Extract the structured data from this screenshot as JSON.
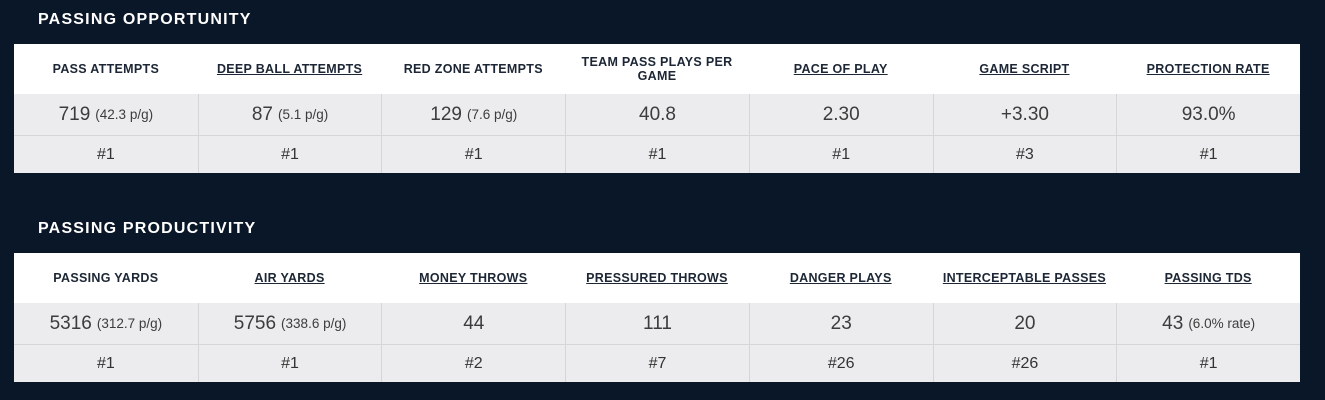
{
  "colors": {
    "background_navy": "#0a1728",
    "header_band": "#ffffff",
    "row_gray": "#ececee",
    "divider": "#d6d6da",
    "title_text": "#ffffff",
    "header_text": "#1c2634",
    "value_text": "#3c3c3c"
  },
  "sections": [
    {
      "title": "PASSING OPPORTUNITY",
      "columns": [
        {
          "label": "PASS ATTEMPTS",
          "underlined": false,
          "value": "719",
          "sub": "(42.3 p/g)",
          "rank": "#1"
        },
        {
          "label": "DEEP BALL ATTEMPTS",
          "underlined": true,
          "value": "87",
          "sub": "(5.1 p/g)",
          "rank": "#1"
        },
        {
          "label": "RED ZONE ATTEMPTS",
          "underlined": false,
          "value": "129",
          "sub": "(7.6 p/g)",
          "rank": "#1"
        },
        {
          "label": "TEAM PASS PLAYS PER GAME",
          "underlined": false,
          "value": "40.8",
          "sub": "",
          "rank": "#1"
        },
        {
          "label": "PACE OF PLAY",
          "underlined": true,
          "value": "2.30",
          "sub": "",
          "rank": "#1"
        },
        {
          "label": "GAME SCRIPT",
          "underlined": true,
          "value": "+3.30",
          "sub": "",
          "rank": "#3"
        },
        {
          "label": "PROTECTION RATE",
          "underlined": true,
          "value": "93.0%",
          "sub": "",
          "rank": "#1"
        }
      ]
    },
    {
      "title": "PASSING PRODUCTIVITY",
      "columns": [
        {
          "label": "PASSING YARDS",
          "underlined": false,
          "value": "5316",
          "sub": "(312.7 p/g)",
          "rank": "#1"
        },
        {
          "label": "AIR YARDS",
          "underlined": true,
          "value": "5756",
          "sub": "(338.6 p/g)",
          "rank": "#1"
        },
        {
          "label": "MONEY THROWS",
          "underlined": true,
          "value": "44",
          "sub": "",
          "rank": "#2"
        },
        {
          "label": "PRESSURED THROWS",
          "underlined": true,
          "value": "111",
          "sub": "",
          "rank": "#7"
        },
        {
          "label": "DANGER PLAYS",
          "underlined": true,
          "value": "23",
          "sub": "",
          "rank": "#26"
        },
        {
          "label": "INTERCEPTABLE PASSES",
          "underlined": true,
          "value": "20",
          "sub": "",
          "rank": "#26"
        },
        {
          "label": "PASSING TDS",
          "underlined": true,
          "value": "43",
          "sub": "(6.0% rate)",
          "rank": "#1"
        }
      ]
    }
  ]
}
